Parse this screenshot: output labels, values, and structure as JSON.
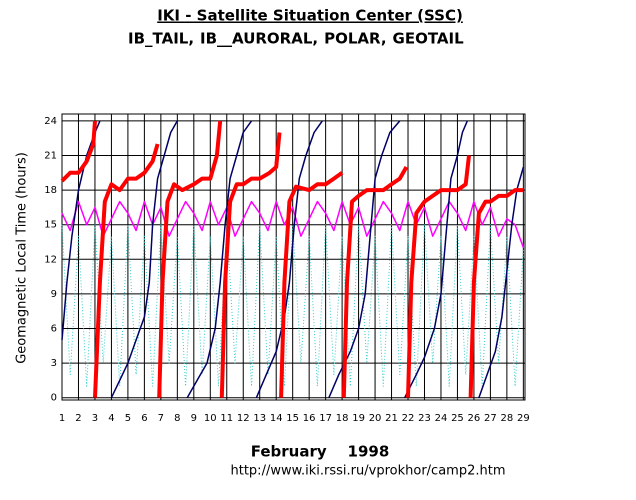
{
  "chart_data": {
    "type": "line",
    "title": "IKI - Satellite Situation Center (SSC)",
    "ylabel": "Geomagnetic Local Time (hours)",
    "xlabel": "February    1998",
    "source": "http://www.iki.rssi.ru/vprokhor/camp2.htm",
    "xlim": [
      1,
      29.1
    ],
    "ylim": [
      -0.2,
      24.6
    ],
    "xticks": [
      1,
      2,
      3,
      4,
      5,
      6,
      7,
      8,
      9,
      10,
      11,
      12,
      13,
      14,
      15,
      16,
      17,
      18,
      19,
      20,
      21,
      22,
      23,
      24,
      25,
      26,
      27,
      28,
      29
    ],
    "yticks": [
      0,
      3,
      6,
      9,
      12,
      15,
      18,
      21,
      24
    ],
    "grid": true,
    "series": [
      {
        "name": "IB_TAIL,",
        "color": "#ff0000",
        "x": [
          1,
          1.5,
          2,
          2.5,
          2.9,
          3.0,
          null,
          3.0,
          3.3,
          3.6,
          4,
          4.5,
          5,
          5.5,
          6,
          6.5,
          6.8,
          null,
          6.9,
          7.1,
          7.4,
          7.8,
          8.3,
          9,
          9.5,
          10,
          10.4,
          10.6,
          null,
          10.7,
          10.9,
          11.2,
          11.6,
          12,
          12.5,
          13,
          13.6,
          14,
          14.2,
          null,
          14.3,
          14.5,
          14.8,
          15.2,
          16,
          16.5,
          17,
          17.5,
          18,
          null,
          18.1,
          18.3,
          18.6,
          19,
          19.5,
          20,
          20.5,
          21,
          21.5,
          21.9,
          null,
          22,
          22.2,
          22.5,
          23,
          23.5,
          24,
          24.5,
          25,
          25.5,
          25.7,
          null,
          25.8,
          26,
          26.3,
          26.7,
          27,
          27.5,
          28,
          28.5,
          29
        ],
        "values": [
          18.8,
          19.5,
          19.5,
          20.5,
          22,
          24,
          null,
          0,
          10,
          17,
          18.5,
          18,
          19,
          19,
          19.5,
          20.5,
          22,
          null,
          0,
          10,
          17,
          18.5,
          18,
          18.5,
          19,
          19,
          21,
          24,
          null,
          0,
          10,
          17,
          18.5,
          18.5,
          19,
          19,
          19.5,
          20,
          23,
          null,
          0,
          10,
          17,
          18.3,
          18,
          18.5,
          18.5,
          19,
          19.5,
          null,
          0,
          10,
          17,
          17.5,
          18,
          18,
          18,
          18.5,
          19,
          20,
          null,
          0,
          10,
          16,
          17,
          17.5,
          18,
          18,
          18,
          18.5,
          21,
          null,
          0,
          10,
          16,
          17,
          17,
          17.5,
          17.5,
          18,
          18
        ]
      },
      {
        "name": "IB__AURORAL,",
        "color": "#33cccc",
        "x": [
          1,
          1.5,
          2,
          2.5,
          3,
          3.5,
          4,
          4.5,
          5,
          5.5,
          6,
          6.5,
          7,
          7.5,
          8,
          8.5,
          9,
          9.5,
          10,
          10.5,
          11,
          11.5,
          12,
          12.5,
          13,
          13.5,
          14,
          14.5,
          15,
          15.5,
          16,
          16.5,
          17,
          17.5,
          18,
          18.5,
          19,
          19.5,
          20,
          20.5,
          21,
          21.5,
          22,
          22.5,
          23,
          23.5,
          24,
          24.5,
          25,
          25.5,
          26,
          26.5,
          27,
          27.5,
          28,
          28.5,
          29
        ],
        "values": [
          15,
          2,
          14,
          1,
          15,
          3,
          14,
          1,
          15,
          2,
          14,
          1,
          15,
          3,
          14,
          1,
          15,
          2,
          14,
          1,
          15,
          3,
          14,
          1,
          15,
          2,
          14,
          1,
          15,
          3,
          14,
          1,
          15,
          2,
          14,
          1,
          15,
          3,
          14,
          1,
          15,
          2,
          14,
          1,
          15,
          3,
          14,
          1,
          15,
          2,
          14,
          1,
          15,
          3,
          14,
          1,
          13
        ]
      },
      {
        "name": "POLAR,",
        "color": "#ff00ff",
        "x": [
          1,
          1.5,
          2,
          2.5,
          3,
          3.5,
          4,
          4.5,
          5,
          5.5,
          6,
          6.5,
          7,
          7.5,
          8,
          8.5,
          9,
          9.5,
          10,
          10.5,
          11,
          11.5,
          12,
          12.5,
          13,
          13.5,
          14,
          14.5,
          15,
          15.5,
          16,
          16.5,
          17,
          17.5,
          18,
          18.5,
          19,
          19.5,
          20,
          20.5,
          21,
          21.5,
          22,
          22.5,
          23,
          23.5,
          24,
          24.5,
          25,
          25.5,
          26,
          26.5,
          27,
          27.5,
          28,
          28.5,
          29
        ],
        "values": [
          16,
          14.5,
          17,
          15,
          16.5,
          14,
          15.5,
          17,
          16,
          14.5,
          17,
          15,
          16.5,
          14,
          15.5,
          17,
          16,
          14.5,
          17,
          15,
          16.5,
          14,
          15.5,
          17,
          16,
          14.5,
          17,
          15,
          16.5,
          14,
          15.5,
          17,
          16,
          14.5,
          17,
          15,
          16.5,
          14,
          15.5,
          17,
          16,
          14.5,
          17,
          15,
          16.5,
          14,
          15.5,
          17,
          16,
          14.5,
          17,
          15,
          16.5,
          14,
          15.5,
          15,
          13
        ]
      },
      {
        "name": "GEOTAIL",
        "color": "#000066",
        "x": [
          1,
          1.3,
          1.6,
          2,
          2.5,
          3,
          3.3,
          null,
          4,
          4.5,
          5,
          5.5,
          6,
          6.3,
          6.5,
          6.8,
          7.2,
          7.6,
          8.0,
          null,
          8.6,
          9.2,
          9.8,
          10.3,
          10.6,
          10.9,
          11.2,
          11.6,
          12.0,
          12.5,
          null,
          12.8,
          13.4,
          14,
          14.5,
          14.8,
          15.1,
          15.4,
          15.8,
          16.3,
          16.8,
          null,
          17.2,
          17.8,
          18.5,
          19,
          19.4,
          19.7,
          20,
          20.4,
          20.9,
          21.5,
          null,
          21.8,
          22.5,
          23,
          23.6,
          24,
          24.3,
          24.6,
          25,
          25.3,
          25.6,
          null,
          26.3,
          26.8,
          27.3,
          27.7,
          28,
          28.3,
          28.6,
          29
        ],
        "values": [
          5,
          10,
          14,
          18,
          21,
          23,
          24,
          null,
          0,
          1.5,
          3,
          5,
          7,
          10,
          15,
          19,
          21,
          23,
          24,
          null,
          0,
          1.5,
          3,
          6,
          10,
          15,
          19,
          21,
          23,
          24,
          null,
          0,
          2,
          4,
          7,
          10,
          15,
          19,
          21,
          23,
          24,
          null,
          0,
          2,
          4,
          6,
          9,
          14,
          19,
          21,
          23,
          24,
          null,
          0,
          2,
          3.5,
          6,
          9,
          14,
          19,
          21,
          23,
          24,
          null,
          0,
          2,
          4,
          7,
          11,
          15,
          18,
          20
        ]
      }
    ]
  }
}
